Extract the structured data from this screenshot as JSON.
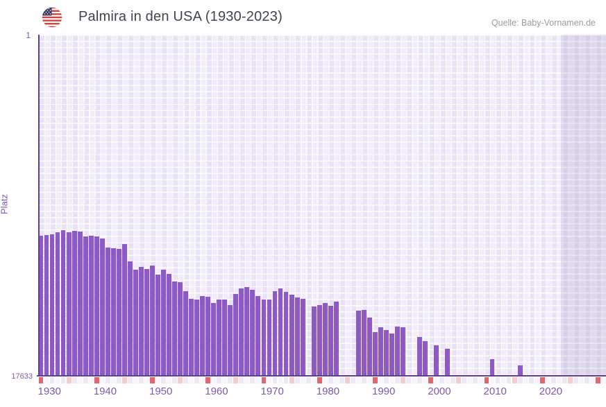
{
  "header": {
    "title": "Palmira in den USA (1930-2023)",
    "source": "Quelle: Baby-Vornamen.de",
    "flag_icon": "us-flag-round"
  },
  "axes": {
    "y_label": "Platz",
    "y_top_tick": "1",
    "y_bottom_tick": "17633",
    "x_tick_labels": [
      "1930",
      "1940",
      "1950",
      "1960",
      "1970",
      "1980",
      "1990",
      "2000",
      "2010",
      "2020"
    ]
  },
  "colors": {
    "bar": "#8c59c6",
    "axis_line": "#5e3d9b",
    "tick_text": "#7e57b5",
    "title_text": "#3f444d",
    "source_text": "#9b9b9b",
    "strip_decade_red": "#dd686e",
    "strip_half_decade_pink": "#f3ccd3",
    "strip_even": "#ece8f6",
    "strip_odd": "#f7f5fb",
    "plot_checker_base": "#f0ecf9",
    "future_band_overlay": "rgba(104,88,152,0.13)"
  },
  "chart_data": {
    "type": "bar",
    "title": "Palmira in den USA (1930-2023)",
    "xlabel": "",
    "ylabel": "Platz",
    "legend": "none",
    "grid": "checkered",
    "y_axis": {
      "top_rank": 1,
      "bottom_rank": 17633,
      "inverted": true
    },
    "x_domain": [
      1930,
      2032
    ],
    "x_data_range": [
      1930,
      2023
    ],
    "years": [
      1930,
      1931,
      1932,
      1933,
      1934,
      1935,
      1936,
      1937,
      1938,
      1939,
      1940,
      1941,
      1942,
      1943,
      1944,
      1945,
      1946,
      1947,
      1948,
      1949,
      1950,
      1951,
      1952,
      1953,
      1954,
      1955,
      1956,
      1957,
      1958,
      1959,
      1960,
      1961,
      1962,
      1963,
      1964,
      1965,
      1966,
      1967,
      1968,
      1969,
      1970,
      1971,
      1972,
      1973,
      1974,
      1975,
      1976,
      1977,
      1979,
      1980,
      1981,
      1982,
      1983,
      1987,
      1988,
      1989,
      1990,
      1991,
      1992,
      1993,
      1994,
      1995,
      1998,
      1999,
      2001,
      2003,
      2011,
      2016
    ],
    "ranks": [
      10430,
      10395,
      10360,
      10235,
      10125,
      10250,
      10180,
      10215,
      10465,
      10430,
      10465,
      10575,
      11040,
      11075,
      11110,
      10860,
      11755,
      12185,
      12045,
      12150,
      11970,
      12435,
      12185,
      12400,
      12795,
      12830,
      13295,
      13690,
      13725,
      13550,
      13585,
      13905,
      13725,
      13725,
      14015,
      13440,
      13155,
      13080,
      13225,
      13550,
      13725,
      13725,
      13295,
      13155,
      13335,
      13475,
      13620,
      13690,
      14085,
      14015,
      13905,
      14050,
      13815,
      14285,
      14265,
      14660,
      15410,
      15160,
      15305,
      15485,
      15125,
      15160,
      15665,
      15880,
      16095,
      16270,
      16810,
      17135
    ],
    "missing_years": [
      1978,
      1984,
      1985,
      1986,
      1996,
      1997,
      2000,
      2002,
      2004,
      2005,
      2006,
      2007,
      2008,
      2009,
      2010,
      2012,
      2013,
      2014,
      2015,
      2017,
      2018,
      2019,
      2020,
      2021,
      2022,
      2023
    ]
  }
}
